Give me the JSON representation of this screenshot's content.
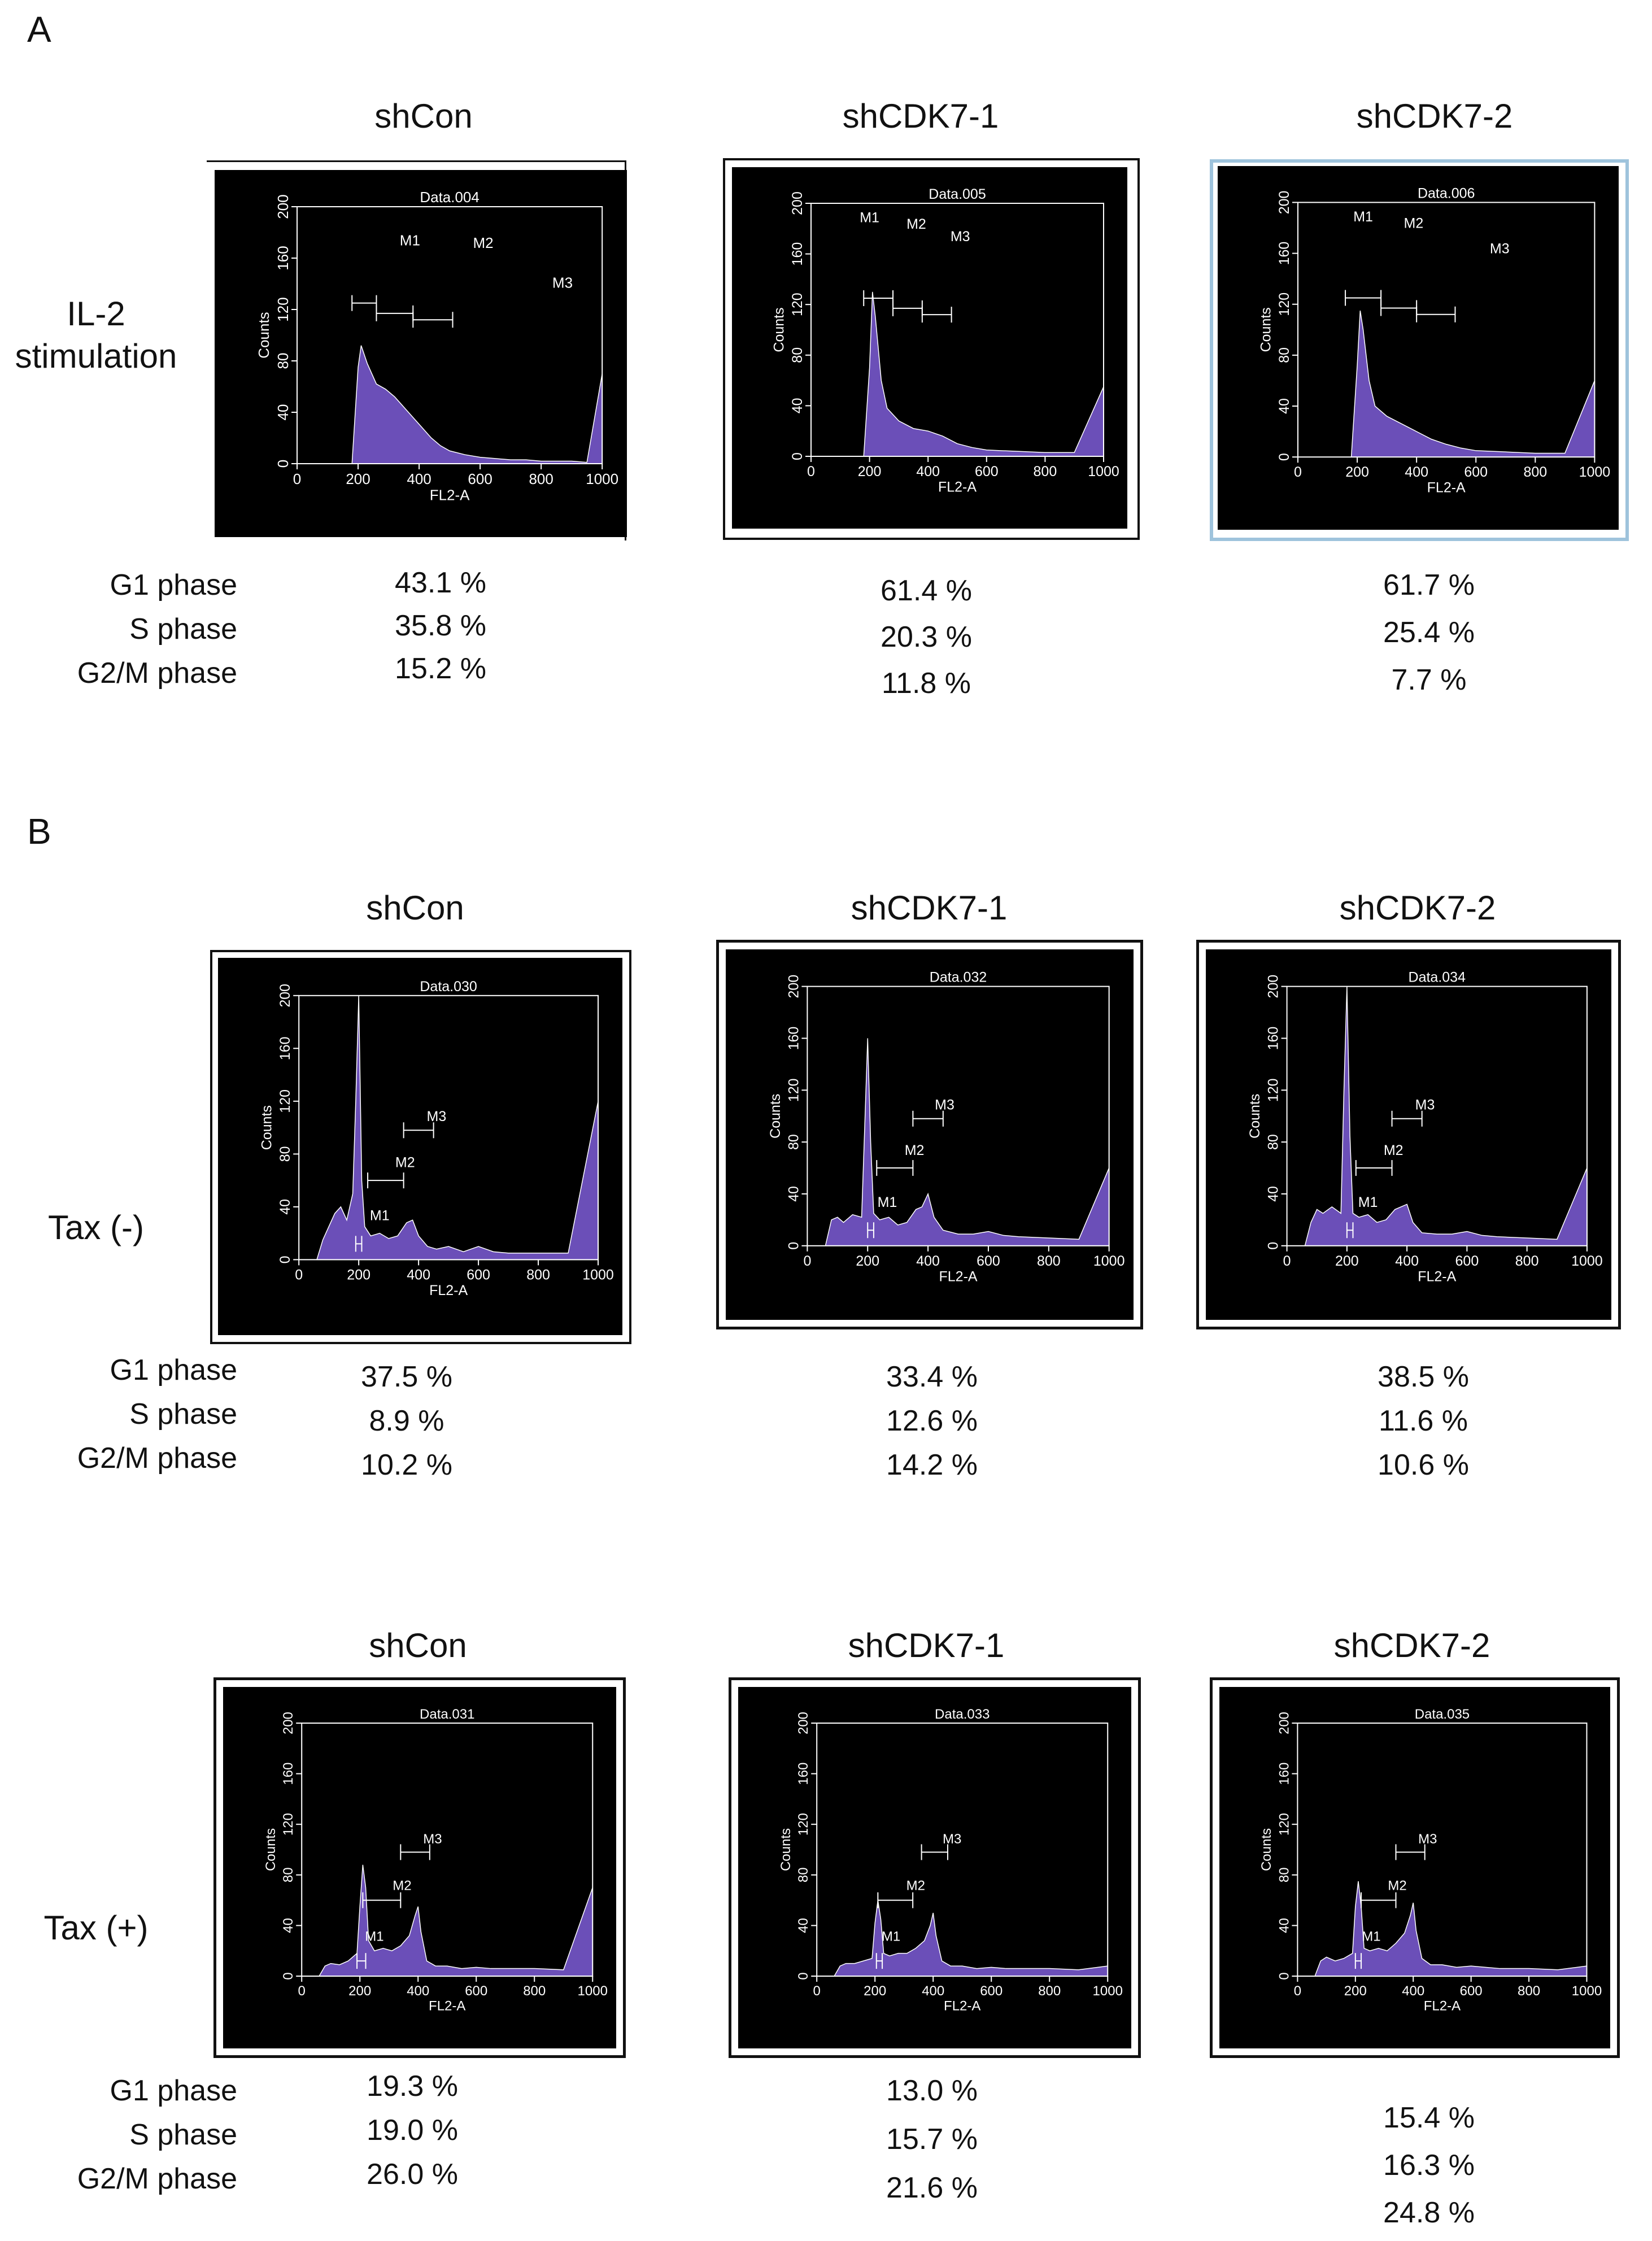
{
  "panel_a": {
    "label": "A",
    "columns": [
      "shCon",
      "shCDK7-1",
      "shCDK7-2"
    ],
    "row_label_line1": "IL-2",
    "row_label_line2": "stimulation",
    "phase_labels": [
      "G1 phase",
      "S phase",
      "G2/M phase"
    ],
    "percentages": [
      [
        "43.1 %",
        "35.8 %",
        "15.2 %"
      ],
      [
        "61.4 %",
        "20.3 %",
        "11.8 %"
      ],
      [
        "61.7 %",
        "25.4 %",
        "7.7 %"
      ]
    ]
  },
  "panel_b": {
    "label": "B",
    "columns": [
      "shCon",
      "shCDK7-1",
      "shCDK7-2"
    ],
    "rows": [
      {
        "row_label": "Tax (-)",
        "phase_labels": [
          "G1 phase",
          "S phase",
          "G2/M phase"
        ],
        "percentages": [
          [
            "37.5 %",
            "8.9 %",
            "10.2 %"
          ],
          [
            "33.4 %",
            "12.6 %",
            "14.2 %"
          ],
          [
            "38.5 %",
            "11.6 %",
            "10.6 %"
          ]
        ]
      },
      {
        "row_label": "Tax (+)",
        "phase_labels": [
          "G1 phase",
          "S phase",
          "G2/M phase"
        ],
        "percentages": [
          [
            "19.3 %",
            "19.0 %",
            "26.0 %"
          ],
          [
            "13.0 %",
            "15.7 %",
            "21.6 %"
          ],
          [
            "15.4 %",
            "16.3 %",
            "24.8 %"
          ]
        ]
      }
    ]
  },
  "colors": {
    "plot_bg": "#000000",
    "fill": "#6b4fb8",
    "axis": "#ffffff",
    "frame_a3": "#9ec3dc"
  },
  "chart_data": [
    {
      "id": "A1",
      "type": "area",
      "title": "Data.004",
      "xlabel": "FL2-A",
      "ylabel": "Counts",
      "xlim": [
        0,
        1000
      ],
      "ylim": [
        0,
        200
      ],
      "xticks": [
        "0",
        "200",
        "400",
        "600",
        "800",
        "1000"
      ],
      "yticks": [
        "0",
        "40",
        "80",
        "120",
        "160",
        "200"
      ],
      "x": [
        30,
        60,
        90,
        120,
        150,
        180,
        200,
        210,
        230,
        260,
        290,
        320,
        350,
        380,
        410,
        440,
        470,
        500,
        550,
        600,
        650,
        700,
        750,
        800,
        850,
        900,
        950,
        1000
      ],
      "y": [
        0,
        0,
        0,
        0,
        0,
        0,
        75,
        92,
        78,
        62,
        58,
        52,
        44,
        36,
        28,
        20,
        14,
        10,
        7,
        5,
        4,
        3,
        3,
        2,
        2,
        2,
        1,
        70
      ],
      "markers": [
        {
          "name": "M1",
          "gate": [
            180,
            260
          ]
        },
        {
          "name": "M2",
          "gate": [
            260,
            380
          ]
        },
        {
          "name": "M3",
          "gate": [
            380,
            510
          ]
        }
      ],
      "marker_labels": [
        {
          "name": "M1",
          "x": 370,
          "y": 170
        },
        {
          "name": "M2",
          "x": 610,
          "y": 168
        },
        {
          "name": "M3",
          "x": 870,
          "y": 137
        }
      ]
    },
    {
      "id": "A2",
      "type": "area",
      "title": "Data.005",
      "xlabel": "FL2-A",
      "ylabel": "Counts",
      "xlim": [
        0,
        1000
      ],
      "ylim": [
        0,
        200
      ],
      "xticks": [
        "0",
        "200",
        "400",
        "600",
        "800",
        "1000"
      ],
      "yticks": [
        "0",
        "40",
        "80",
        "120",
        "160",
        "200"
      ],
      "x": [
        30,
        60,
        90,
        120,
        150,
        180,
        200,
        210,
        220,
        240,
        260,
        300,
        350,
        400,
        450,
        500,
        550,
        600,
        700,
        800,
        900,
        1000
      ],
      "y": [
        0,
        0,
        0,
        0,
        0,
        0,
        70,
        130,
        110,
        60,
        38,
        28,
        22,
        20,
        16,
        10,
        7,
        5,
        4,
        3,
        3,
        55
      ],
      "markers": [
        {
          "name": "M1",
          "gate": [
            180,
            280
          ]
        },
        {
          "name": "M2",
          "gate": [
            280,
            380
          ]
        },
        {
          "name": "M3",
          "gate": [
            380,
            480
          ]
        }
      ],
      "marker_labels": [
        {
          "name": "M1",
          "x": 200,
          "y": 185
        },
        {
          "name": "M2",
          "x": 360,
          "y": 180
        },
        {
          "name": "M3",
          "x": 510,
          "y": 170
        }
      ]
    },
    {
      "id": "A3",
      "type": "area",
      "title": "Data.006",
      "xlabel": "FL2-A",
      "ylabel": "Counts",
      "xlim": [
        0,
        1000
      ],
      "ylim": [
        0,
        200
      ],
      "xticks": [
        "0",
        "200",
        "400",
        "600",
        "800",
        "1000"
      ],
      "yticks": [
        "0",
        "40",
        "80",
        "120",
        "160",
        "200"
      ],
      "x": [
        30,
        60,
        90,
        120,
        150,
        180,
        200,
        210,
        220,
        240,
        260,
        300,
        350,
        400,
        450,
        500,
        550,
        600,
        700,
        800,
        900,
        1000
      ],
      "y": [
        0,
        0,
        0,
        0,
        0,
        0,
        72,
        115,
        100,
        60,
        40,
        32,
        26,
        20,
        14,
        10,
        7,
        5,
        4,
        3,
        3,
        60
      ],
      "markers": [
        {
          "name": "M1",
          "gate": [
            160,
            280
          ]
        },
        {
          "name": "M2",
          "gate": [
            280,
            400
          ]
        },
        {
          "name": "M3",
          "gate": [
            400,
            530
          ]
        }
      ],
      "marker_labels": [
        {
          "name": "M1",
          "x": 220,
          "y": 185
        },
        {
          "name": "M2",
          "x": 390,
          "y": 180
        },
        {
          "name": "M3",
          "x": 680,
          "y": 160
        }
      ]
    },
    {
      "id": "B1",
      "type": "area",
      "title": "Data.030",
      "xlabel": "FL2-A",
      "ylabel": "Counts",
      "xlim": [
        0,
        1000
      ],
      "ylim": [
        0,
        200
      ],
      "xticks": [
        "0",
        "200",
        "400",
        "600",
        "800",
        "1000"
      ],
      "yticks": [
        "0",
        "40",
        "80",
        "120",
        "160",
        "200"
      ],
      "x": [
        60,
        80,
        100,
        120,
        140,
        160,
        180,
        190,
        200,
        210,
        220,
        240,
        270,
        300,
        330,
        360,
        380,
        400,
        430,
        460,
        500,
        550,
        600,
        650,
        700,
        800,
        900,
        1000
      ],
      "y": [
        0,
        15,
        25,
        35,
        40,
        30,
        50,
        120,
        200,
        60,
        25,
        18,
        20,
        16,
        18,
        28,
        30,
        18,
        10,
        8,
        10,
        6,
        10,
        6,
        5,
        5,
        5,
        120
      ],
      "markers": [
        {
          "name": "M1",
          "gate": [
            190,
            210
          ]
        },
        {
          "name": "M2",
          "gate": [
            230,
            350
          ]
        },
        {
          "name": "M3",
          "gate": [
            350,
            450
          ]
        }
      ],
      "marker_labels": [
        {
          "name": "M1",
          "x": 270,
          "y": 30
        },
        {
          "name": "M2",
          "x": 355,
          "y": 70
        },
        {
          "name": "M3",
          "x": 460,
          "y": 105
        }
      ]
    },
    {
      "id": "B2",
      "type": "area",
      "title": "Data.032",
      "xlabel": "FL2-A",
      "ylabel": "Counts",
      "xlim": [
        0,
        1000
      ],
      "ylim": [
        0,
        200
      ],
      "xticks": [
        "0",
        "200",
        "400",
        "600",
        "800",
        "1000"
      ],
      "yticks": [
        "0",
        "40",
        "80",
        "120",
        "160",
        "200"
      ],
      "x": [
        60,
        80,
        100,
        120,
        150,
        180,
        190,
        200,
        210,
        220,
        240,
        270,
        300,
        330,
        360,
        380,
        400,
        420,
        450,
        500,
        550,
        600,
        650,
        700,
        800,
        900,
        1000
      ],
      "y": [
        0,
        20,
        22,
        18,
        24,
        22,
        90,
        160,
        80,
        25,
        20,
        22,
        16,
        18,
        28,
        30,
        40,
        22,
        12,
        9,
        9,
        11,
        8,
        7,
        6,
        5,
        60
      ],
      "markers": [
        {
          "name": "M1",
          "gate": [
            200,
            220
          ]
        },
        {
          "name": "M2",
          "gate": [
            230,
            350
          ]
        },
        {
          "name": "M3",
          "gate": [
            350,
            450
          ]
        }
      ],
      "marker_labels": [
        {
          "name": "M1",
          "x": 265,
          "y": 30
        },
        {
          "name": "M2",
          "x": 355,
          "y": 70
        },
        {
          "name": "M3",
          "x": 455,
          "y": 105
        }
      ]
    },
    {
      "id": "B3",
      "type": "area",
      "title": "Data.034",
      "xlabel": "FL2-A",
      "ylabel": "Counts",
      "xlim": [
        0,
        1000
      ],
      "ylim": [
        0,
        200
      ],
      "xticks": [
        "0",
        "200",
        "400",
        "600",
        "800",
        "1000"
      ],
      "yticks": [
        "0",
        "40",
        "80",
        "120",
        "160",
        "200"
      ],
      "x": [
        60,
        80,
        100,
        120,
        150,
        180,
        190,
        200,
        210,
        220,
        240,
        270,
        300,
        330,
        360,
        380,
        400,
        420,
        450,
        500,
        550,
        600,
        650,
        700,
        800,
        900,
        1000
      ],
      "y": [
        0,
        18,
        28,
        25,
        30,
        25,
        120,
        200,
        85,
        25,
        22,
        24,
        18,
        20,
        28,
        30,
        32,
        18,
        10,
        9,
        9,
        11,
        8,
        7,
        6,
        5,
        60
      ],
      "markers": [
        {
          "name": "M1",
          "gate": [
            200,
            220
          ]
        },
        {
          "name": "M2",
          "gate": [
            230,
            350
          ]
        },
        {
          "name": "M3",
          "gate": [
            350,
            450
          ]
        }
      ],
      "marker_labels": [
        {
          "name": "M1",
          "x": 270,
          "y": 30
        },
        {
          "name": "M2",
          "x": 355,
          "y": 70
        },
        {
          "name": "M3",
          "x": 460,
          "y": 105
        }
      ]
    },
    {
      "id": "B4",
      "type": "area",
      "title": "Data.031",
      "xlabel": "FL2-A",
      "ylabel": "Counts",
      "xlim": [
        0,
        1000
      ],
      "ylim": [
        0,
        200
      ],
      "xticks": [
        "0",
        "200",
        "400",
        "600",
        "800",
        "1000"
      ],
      "yticks": [
        "0",
        "40",
        "80",
        "120",
        "160",
        "200"
      ],
      "x": [
        60,
        80,
        100,
        130,
        160,
        190,
        200,
        210,
        220,
        230,
        250,
        280,
        310,
        340,
        370,
        390,
        400,
        410,
        430,
        460,
        500,
        550,
        600,
        650,
        700,
        800,
        900,
        1000
      ],
      "y": [
        0,
        8,
        10,
        9,
        12,
        18,
        55,
        88,
        70,
        28,
        20,
        22,
        20,
        24,
        32,
        48,
        55,
        35,
        12,
        8,
        8,
        6,
        7,
        6,
        6,
        6,
        5,
        70
      ],
      "markers": [
        {
          "name": "M1",
          "gate": [
            190,
            220
          ]
        },
        {
          "name": "M2",
          "gate": [
            210,
            340
          ]
        },
        {
          "name": "M3",
          "gate": [
            340,
            440
          ]
        }
      ],
      "marker_labels": [
        {
          "name": "M1",
          "x": 250,
          "y": 28
        },
        {
          "name": "M2",
          "x": 345,
          "y": 68
        },
        {
          "name": "M3",
          "x": 450,
          "y": 105
        }
      ]
    },
    {
      "id": "B5",
      "type": "area",
      "title": "Data.033",
      "xlabel": "FL2-A",
      "ylabel": "Counts",
      "xlim": [
        0,
        1000
      ],
      "ylim": [
        0,
        200
      ],
      "xticks": [
        "0",
        "200",
        "400",
        "600",
        "800",
        "1000"
      ],
      "yticks": [
        "0",
        "40",
        "80",
        "120",
        "160",
        "200"
      ],
      "x": [
        60,
        80,
        100,
        130,
        160,
        190,
        200,
        210,
        220,
        230,
        250,
        280,
        310,
        340,
        370,
        390,
        400,
        410,
        430,
        460,
        500,
        550,
        600,
        650,
        700,
        800,
        900,
        1000
      ],
      "y": [
        0,
        8,
        10,
        10,
        12,
        14,
        42,
        60,
        45,
        18,
        16,
        18,
        18,
        22,
        28,
        40,
        50,
        32,
        12,
        8,
        8,
        6,
        7,
        6,
        6,
        6,
        5,
        8
      ],
      "markers": [
        {
          "name": "M1",
          "gate": [
            205,
            225
          ]
        },
        {
          "name": "M2",
          "gate": [
            210,
            330
          ]
        },
        {
          "name": "M3",
          "gate": [
            360,
            450
          ]
        }
      ],
      "marker_labels": [
        {
          "name": "M1",
          "x": 255,
          "y": 28
        },
        {
          "name": "M2",
          "x": 340,
          "y": 68
        },
        {
          "name": "M3",
          "x": 465,
          "y": 105
        }
      ]
    },
    {
      "id": "B6",
      "type": "area",
      "title": "Data.035",
      "xlabel": "FL2-A",
      "ylabel": "Counts",
      "xlim": [
        0,
        1000
      ],
      "ylim": [
        0,
        200
      ],
      "xticks": [
        "0",
        "200",
        "400",
        "600",
        "800",
        "1000"
      ],
      "yticks": [
        "0",
        "40",
        "80",
        "120",
        "160",
        "200"
      ],
      "x": [
        60,
        80,
        100,
        130,
        160,
        190,
        200,
        210,
        220,
        230,
        250,
        280,
        310,
        340,
        370,
        390,
        400,
        410,
        430,
        460,
        500,
        550,
        600,
        650,
        700,
        800,
        900,
        1000
      ],
      "y": [
        0,
        12,
        15,
        12,
        14,
        18,
        55,
        75,
        55,
        22,
        20,
        22,
        20,
        26,
        34,
        48,
        58,
        36,
        14,
        9,
        9,
        7,
        8,
        7,
        6,
        6,
        5,
        8
      ],
      "markers": [
        {
          "name": "M1",
          "gate": [
            200,
            220
          ]
        },
        {
          "name": "M2",
          "gate": [
            220,
            340
          ]
        },
        {
          "name": "M3",
          "gate": [
            340,
            440
          ]
        }
      ],
      "marker_labels": [
        {
          "name": "M1",
          "x": 255,
          "y": 28
        },
        {
          "name": "M2",
          "x": 345,
          "y": 68
        },
        {
          "name": "M3",
          "x": 450,
          "y": 105
        }
      ]
    }
  ]
}
